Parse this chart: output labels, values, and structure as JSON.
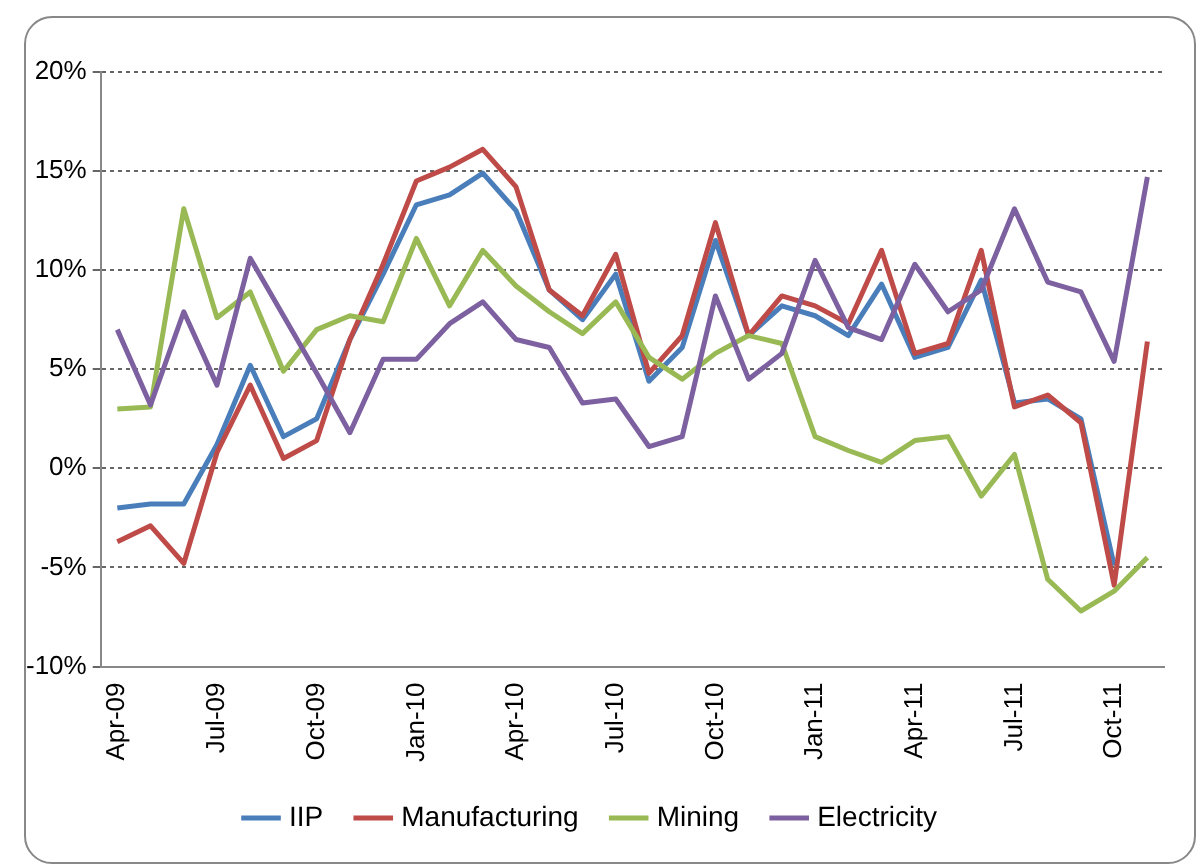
{
  "chart_data": {
    "type": "line",
    "categories": [
      "Apr-09",
      null,
      null,
      "Jul-09",
      null,
      null,
      "Oct-09",
      null,
      null,
      "Jan-10",
      null,
      null,
      "Apr-10",
      null,
      null,
      "Jul-10",
      null,
      null,
      "Oct-10",
      null,
      null,
      "Jan-11",
      null,
      null,
      "Apr-11",
      null,
      null,
      "Jul-11",
      null,
      null,
      "Oct-11",
      null
    ],
    "series": [
      {
        "name": "IIP",
        "color": "#4a7ebb",
        "values": [
          -2.0,
          -1.8,
          -1.8,
          1.2,
          5.2,
          1.6,
          2.5,
          6.5,
          9.8,
          13.3,
          13.8,
          14.9,
          13.0,
          9.0,
          7.5,
          9.8,
          4.4,
          6.1,
          11.5,
          6.7,
          8.2,
          7.7,
          6.7,
          9.3,
          5.6,
          6.1,
          9.5,
          3.3,
          3.5,
          2.5,
          -4.9,
          null
        ]
      },
      {
        "name": "Manufacturing",
        "color": "#be4b48",
        "values": [
          -3.7,
          -2.9,
          -4.8,
          0.8,
          4.2,
          0.5,
          1.4,
          6.5,
          10.3,
          14.5,
          15.2,
          16.1,
          14.2,
          9.0,
          7.7,
          10.8,
          4.8,
          6.7,
          12.4,
          6.7,
          8.7,
          8.2,
          7.3,
          11.0,
          5.8,
          6.3,
          11.0,
          3.1,
          3.7,
          2.3,
          -5.9,
          6.4
        ]
      },
      {
        "name": "Mining",
        "color": "#98b954",
        "values": [
          3.0,
          3.1,
          13.1,
          7.6,
          8.9,
          4.9,
          7.0,
          7.7,
          7.4,
          11.6,
          8.2,
          11.0,
          9.2,
          7.9,
          6.8,
          8.4,
          5.6,
          4.5,
          5.8,
          6.7,
          6.3,
          1.6,
          0.9,
          0.3,
          1.4,
          1.6,
          -1.4,
          0.7,
          -5.6,
          -7.2,
          -6.2,
          -4.5
        ]
      },
      {
        "name": "Electricity",
        "color": "#7d60a0",
        "values": [
          7.0,
          3.2,
          7.9,
          4.2,
          10.6,
          7.7,
          4.8,
          1.8,
          5.5,
          5.5,
          7.3,
          8.4,
          6.5,
          6.1,
          3.3,
          3.5,
          1.1,
          1.6,
          8.7,
          4.5,
          5.8,
          10.5,
          7.1,
          6.5,
          10.3,
          7.9,
          9.0,
          13.1,
          9.4,
          8.9,
          5.4,
          14.7
        ]
      }
    ],
    "ylim": [
      -10,
      20
    ],
    "yticks": [
      {
        "value": -10,
        "label": "-10%"
      },
      {
        "value": -5,
        "label": "-5%"
      },
      {
        "value": 0,
        "label": "0%"
      },
      {
        "value": 5,
        "label": "5%"
      },
      {
        "value": 10,
        "label": "10%"
      },
      {
        "value": 15,
        "label": "15%"
      },
      {
        "value": 20,
        "label": "20%"
      }
    ],
    "grid": "y",
    "legend": "bottom",
    "marker": "none",
    "line_style": "solid"
  }
}
